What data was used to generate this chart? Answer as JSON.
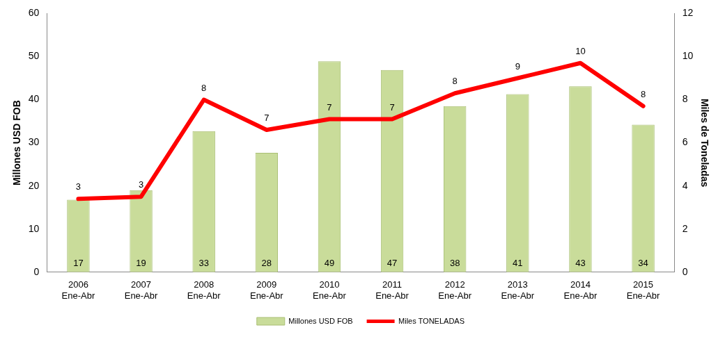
{
  "chart_data": {
    "type": "bar",
    "categories": [
      "2006\nEne-Abr",
      "2007\nEne-Abr",
      "2008\nEne-Abr",
      "2009\nEne-Abr",
      "2010\nEne-Abr",
      "2011\nEne-Abr",
      "2012\nEne-Abr",
      "2013\nEne-Abr",
      "2014\nEne-Abr",
      "2015\nEne-Abr"
    ],
    "series": [
      {
        "name": "Millones USD FOB",
        "color": "#c9dc9a",
        "values": [
          16.8,
          19,
          32.7,
          27.7,
          48.9,
          46.9,
          38.5,
          41.3,
          43.1,
          34.2
        ],
        "value_labels": [
          "17",
          "19",
          "33",
          "28",
          "49",
          "47",
          "38",
          "41",
          "43",
          "34"
        ]
      },
      {
        "name": "Miles TONELADAS",
        "type": "line",
        "axis": "y2",
        "color": "#ff0000",
        "values": [
          3.4,
          3.5,
          8.0,
          6.6,
          7.1,
          7.1,
          8.3,
          9.0,
          9.7,
          7.7
        ],
        "value_labels": [
          "3",
          "3",
          "8",
          "7",
          "7",
          "7",
          "8",
          "9",
          "10",
          "8"
        ]
      }
    ],
    "ylabel": "Millones USD FOB",
    "y2label": "Miles de Toneladas",
    "ylim": [
      0,
      60
    ],
    "yticks": [
      0,
      10,
      20,
      30,
      40,
      50,
      60
    ],
    "y2lim": [
      0,
      12
    ],
    "y2ticks": [
      0,
      2,
      4,
      6,
      8,
      10,
      12
    ],
    "grid": false,
    "legend": "bottom",
    "marker": "none"
  }
}
